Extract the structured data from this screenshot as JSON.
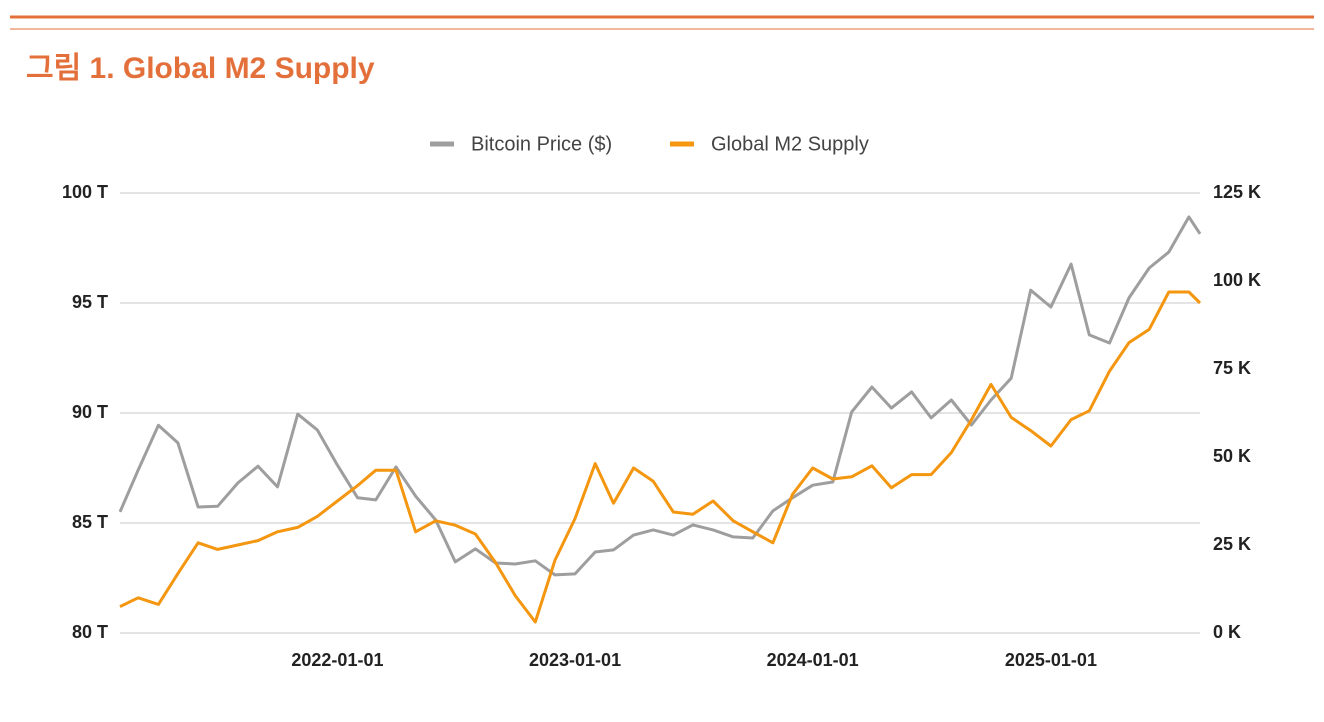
{
  "chart_data": {
    "type": "line",
    "title": "그림 1. Global M2 Supply",
    "x": [
      "2021-02-01",
      "2021-03-01",
      "2021-04-01",
      "2021-05-01",
      "2021-06-01",
      "2021-07-01",
      "2021-08-01",
      "2021-09-01",
      "2021-10-01",
      "2021-11-01",
      "2021-12-01",
      "2022-01-01",
      "2022-02-01",
      "2022-03-01",
      "2022-04-01",
      "2022-05-01",
      "2022-06-01",
      "2022-07-01",
      "2022-08-01",
      "2022-09-01",
      "2022-10-01",
      "2022-11-01",
      "2022-12-01",
      "2023-01-01",
      "2023-02-01",
      "2023-03-01",
      "2023-04-01",
      "2023-05-01",
      "2023-06-01",
      "2023-07-01",
      "2023-08-01",
      "2023-09-01",
      "2023-10-01",
      "2023-11-01",
      "2023-12-01",
      "2024-01-01",
      "2024-02-01",
      "2024-03-01",
      "2024-04-01",
      "2024-05-01",
      "2024-06-01",
      "2024-07-01",
      "2024-08-01",
      "2024-09-01",
      "2024-10-01",
      "2024-11-01",
      "2024-12-01",
      "2025-01-01",
      "2025-02-01",
      "2025-03-01",
      "2025-04-01",
      "2025-05-01",
      "2025-06-01",
      "2025-07-01",
      "2025-08-01",
      "2025-08-18"
    ],
    "xlim": [
      "2021-02-01",
      "2025-08-18"
    ],
    "xticks": [
      "2022-01-01",
      "2023-01-01",
      "2024-01-01",
      "2025-01-01"
    ],
    "series": [
      {
        "name": "Bitcoin Price ($)",
        "color": "#9e9e9e",
        "axis": "y2",
        "values": [
          34.4,
          46.3,
          59,
          54,
          35.8,
          36,
          42.6,
          47.4,
          41.5,
          62.2,
          57.7,
          47.7,
          38.4,
          37.8,
          47.2,
          38.9,
          32.1,
          20.2,
          23.9,
          19.9,
          19.6,
          20.5,
          16.5,
          16.8,
          23,
          23.6,
          27.8,
          29.3,
          27.8,
          30.7,
          29.3,
          27.3,
          27,
          34.7,
          38.4,
          42,
          42.9,
          62.8,
          69.9,
          63.9,
          68.5,
          61.1,
          66.2,
          59.1,
          66.2,
          72.4,
          97.4,
          92.6,
          104.8,
          84.7,
          82.4,
          95.2,
          103.7,
          108.2,
          118.2,
          113.4
        ]
      },
      {
        "name": "Global M2 Supply",
        "color": "#f4960f",
        "values": [
          81.2,
          81.6,
          81.3,
          82.7,
          84.1,
          83.8,
          84.0,
          84.2,
          84.6,
          84.8,
          85.3,
          86.0,
          86.7,
          87.4,
          87.4,
          84.6,
          85.1,
          84.9,
          84.5,
          83.2,
          81.7,
          80.5,
          83.3,
          85.2,
          87.7,
          85.9,
          87.5,
          86.9,
          85.5,
          85.4,
          86.0,
          85.1,
          84.6,
          84.1,
          86.3,
          87.5,
          87.0,
          87.1,
          87.6,
          86.6,
          87.2,
          87.2,
          88.2,
          89.7,
          91.3,
          89.8,
          89.2,
          88.5,
          89.7,
          90.1,
          91.9,
          93.2,
          93.8,
          95.5,
          95.5,
          95.0
        ]
      }
    ],
    "ylim": [
      80,
      100
    ],
    "yticks": [
      {
        "value": 80,
        "label": "80 T"
      },
      {
        "value": 85,
        "label": "85 T"
      },
      {
        "value": 90,
        "label": "90 T"
      },
      {
        "value": 95,
        "label": "95 T"
      },
      {
        "value": 100,
        "label": "100 T"
      }
    ],
    "y2lim": [
      0,
      125
    ],
    "y2ticks": [
      {
        "value": 0,
        "label": "0 K"
      },
      {
        "value": 25,
        "label": "25 K"
      },
      {
        "value": 50,
        "label": "50 K"
      },
      {
        "value": 75,
        "label": "75 K"
      },
      {
        "value": 100,
        "label": "100 K"
      },
      {
        "value": 125,
        "label": "125 K"
      }
    ],
    "grid": true,
    "legend": "top"
  }
}
